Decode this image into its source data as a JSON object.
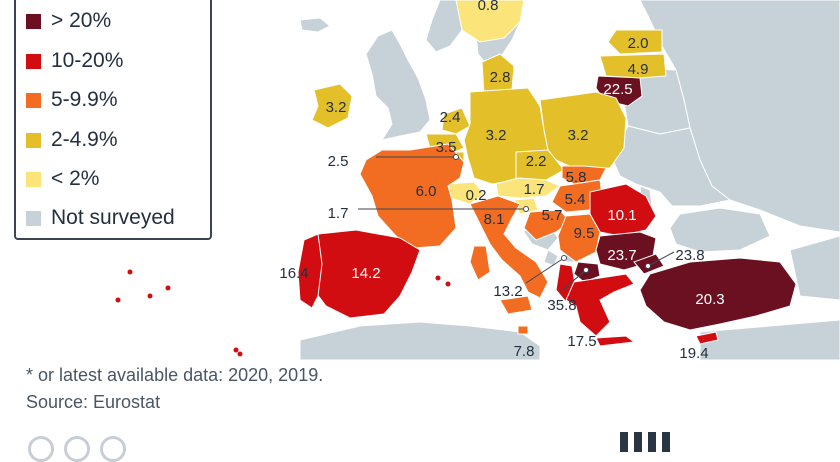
{
  "legend": {
    "items": [
      {
        "label": "> 20%",
        "color": "#6b1020"
      },
      {
        "label": "10-20%",
        "color": "#d10d11"
      },
      {
        "label": "5-9.9%",
        "color": "#f26d21"
      },
      {
        "label": "2-4.9%",
        "color": "#e3c02a"
      },
      {
        "label": "< 2%",
        "color": "#fbe57a"
      },
      {
        "label": "Not surveyed",
        "color": "#c6d1d8"
      }
    ]
  },
  "notes": {
    "footnote": "* or latest available data: 2020, 2019.",
    "source": "Source: Eurostat"
  },
  "colors": {
    "sea": "#ffffff",
    "land_grey": "#c6d1d8",
    "leader_line": "#3c4653",
    "label_dark": "#243040",
    "label_light": "#ffffff"
  },
  "countries": [
    {
      "id": "finland",
      "value": "0.8",
      "category": "< 2%"
    },
    {
      "id": "estonia",
      "value": "2.0",
      "category": "2-4.9%"
    },
    {
      "id": "latvia",
      "value": "4.9",
      "category": "2-4.9%"
    },
    {
      "id": "lithuania",
      "value": "22.5",
      "category": "> 20%"
    },
    {
      "id": "ireland",
      "value": "3.2",
      "category": "2-4.9%"
    },
    {
      "id": "denmark",
      "value": "2.8",
      "category": "2-4.9%"
    },
    {
      "id": "netherlands",
      "value": "2.4",
      "category": "2-4.9%"
    },
    {
      "id": "belgium",
      "value": "3.5",
      "category": "2-4.9%"
    },
    {
      "id": "luxembourg",
      "value": "2.5",
      "category": "2-4.9%"
    },
    {
      "id": "germany",
      "value": "3.2",
      "category": "2-4.9%"
    },
    {
      "id": "poland",
      "value": "3.2",
      "category": "2-4.9%"
    },
    {
      "id": "czechia",
      "value": "2.2",
      "category": "2-4.9%"
    },
    {
      "id": "slovakia",
      "value": "5.8",
      "category": "5-9.9%"
    },
    {
      "id": "hungary",
      "value": "5.4",
      "category": "5-9.9%"
    },
    {
      "id": "austria",
      "value": "1.7",
      "category": "< 2%"
    },
    {
      "id": "slovenia",
      "value": "1.7",
      "category": "< 2%"
    },
    {
      "id": "croatia",
      "value": "5.7",
      "category": "5-9.9%"
    },
    {
      "id": "france",
      "value": "6.0",
      "category": "5-9.9%"
    },
    {
      "id": "switzerland",
      "value": "0.2",
      "category": "< 2%"
    },
    {
      "id": "italy",
      "value": "8.1",
      "category": "5-9.9%"
    },
    {
      "id": "romania",
      "value": "10.1",
      "category": "10-20%"
    },
    {
      "id": "serbia",
      "value": "9.5",
      "category": "5-9.9%"
    },
    {
      "id": "bulgaria",
      "value": "23.7",
      "category": "> 20%"
    },
    {
      "id": "north-macedonia",
      "value": "35.8",
      "category": "> 20%"
    },
    {
      "id": "albania",
      "value": "13.2",
      "category": "10-20%"
    },
    {
      "id": "spain",
      "value": "14.2",
      "category": "10-20%"
    },
    {
      "id": "portugal",
      "value": "16.4",
      "category": "10-20%"
    },
    {
      "id": "turkey",
      "value": "20.3",
      "category": "> 20%"
    },
    {
      "id": "turkey-europe",
      "value": "23.8",
      "category": "> 20%"
    },
    {
      "id": "greece",
      "value": "17.5",
      "category": "10-20%"
    },
    {
      "id": "malta",
      "value": "7.8",
      "category": "5-9.9%"
    },
    {
      "id": "cyprus",
      "value": "19.4",
      "category": "10-20%"
    }
  ]
}
